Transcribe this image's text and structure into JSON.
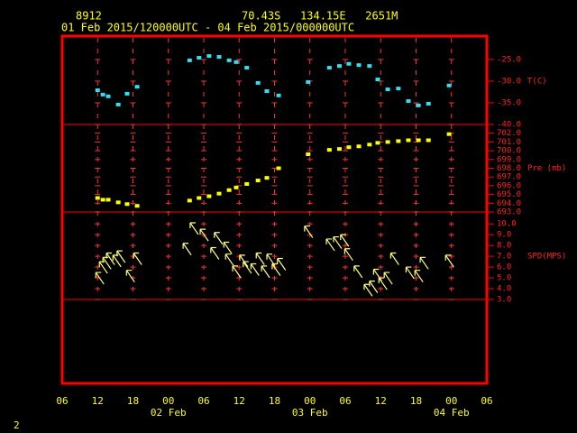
{
  "header": {
    "station": "8912",
    "location": "70.43S   134.15E   2651M",
    "period": "01 Feb 2015/120000UTC - 04 Feb 2015/000000UTC",
    "page": "2"
  },
  "time_axis": {
    "xlim": [
      6,
      78
    ],
    "xticks": [
      {
        "value": 6,
        "label": "06"
      },
      {
        "value": 12,
        "label": "12"
      },
      18,
      {
        "value": 24,
        "label": "00"
      },
      {
        "value": 30,
        "label": "06"
      },
      {
        "value": 36,
        "label": "12"
      },
      {
        "value": 42,
        "label": "18"
      },
      {
        "value": 48,
        "label": "00"
      },
      {
        "value": 54,
        "label": "06"
      },
      {
        "value": 60,
        "label": "12"
      },
      {
        "value": 66,
        "label": "18"
      },
      {
        "value": 72,
        "label": "00"
      },
      {
        "value": 78,
        "label": "06"
      }
    ],
    "day_labels": [
      {
        "value": 24,
        "label": "02 Feb"
      },
      {
        "value": 48,
        "label": "03 Feb"
      },
      {
        "value": 72,
        "label": "04 Feb"
      }
    ]
  },
  "chart_data": [
    {
      "type": "scatter",
      "ylabel": "T(C)",
      "color": "#30e0f0",
      "ylim": [
        -40,
        -19.6
      ],
      "yticks": [
        {
          "value": -25,
          "label": "-25.0"
        },
        {
          "value": -30,
          "label": "-30.0"
        },
        {
          "value": -35,
          "label": "-35.0"
        },
        {
          "value": -40,
          "label": "-40.0"
        }
      ],
      "x": [
        12.0,
        12.9,
        13.8,
        15.5,
        17.0,
        18.7,
        27.6,
        29.2,
        30.9,
        32.6,
        34.3,
        35.5,
        37.3,
        39.2,
        40.7,
        42.7,
        47.7,
        51.3,
        53.0,
        54.6,
        56.3,
        58.1,
        59.5,
        61.2,
        63.0,
        64.7,
        66.4,
        68.1,
        71.6
      ],
      "values": [
        -32.1,
        -33.1,
        -33.5,
        -35.4,
        -32.9,
        -31.3,
        -25.2,
        -24.6,
        -24.2,
        -24.4,
        -25.2,
        -25.6,
        -26.9,
        -30.4,
        -32.3,
        -33.3,
        -30.2,
        -26.9,
        -26.5,
        -26.0,
        -26.3,
        -26.5,
        -29.6,
        -31.9,
        -31.7,
        -34.6,
        -35.6,
        -35.2,
        -31.0
      ]
    },
    {
      "type": "scatter",
      "ylabel": "Pre (mb)",
      "color": "#ffff00",
      "ylim": [
        693,
        703
      ],
      "yticks": [
        {
          "value": 693,
          "label": "693.0"
        },
        {
          "value": 694,
          "label": "694.0"
        },
        {
          "value": 695,
          "label": "695.0"
        },
        {
          "value": 696,
          "label": "696.0"
        },
        {
          "value": 697,
          "label": "697.0"
        },
        {
          "value": 698,
          "label": "698.0"
        },
        {
          "value": 699,
          "label": "699.0"
        },
        {
          "value": 700,
          "label": "700.0"
        },
        {
          "value": 701,
          "label": "701.0"
        },
        {
          "value": 702,
          "label": "702.0"
        }
      ],
      "x": [
        12.0,
        12.9,
        13.8,
        15.5,
        17.0,
        18.7,
        27.6,
        29.2,
        30.9,
        32.6,
        34.3,
        35.5,
        37.3,
        39.2,
        40.7,
        42.7,
        47.7,
        51.3,
        53.0,
        54.6,
        56.3,
        58.1,
        59.5,
        61.2,
        63.0,
        64.7,
        66.4,
        68.1,
        71.6
      ],
      "values": [
        694.6,
        694.4,
        694.4,
        694.1,
        693.9,
        693.7,
        694.3,
        694.6,
        694.8,
        695.1,
        695.5,
        695.8,
        696.2,
        696.6,
        696.9,
        698.0,
        699.6,
        700.1,
        700.2,
        700.4,
        700.5,
        700.7,
        700.9,
        701.0,
        701.1,
        701.2,
        701.2,
        701.2,
        701.9
      ]
    },
    {
      "type": "arrow",
      "ylabel": "SPD(MPS)",
      "color": "#ffff80",
      "ylim": [
        3,
        11.1
      ],
      "yticks": [
        {
          "value": 3,
          "label": "3.0"
        },
        {
          "value": 4,
          "label": "4.0"
        },
        {
          "value": 5,
          "label": "5.0"
        },
        {
          "value": 6,
          "label": "6.0"
        },
        {
          "value": 7,
          "label": "7.0"
        },
        {
          "value": 8,
          "label": "8.0"
        },
        {
          "value": 9,
          "label": "9.0"
        },
        {
          "value": 10,
          "label": "10.0"
        }
      ],
      "x": [
        11.7,
        12.3,
        12.9,
        13.5,
        14.6,
        15.3,
        16.9,
        18.1,
        27.7,
        29.4,
        26.5,
        31.2,
        31.8,
        33.4,
        33.7,
        34.9,
        36.1,
        36.7,
        38.0,
        38.9,
        39.8,
        40.7,
        41.6,
        42.5,
        47.1,
        50.8,
        52.0,
        53.2,
        53.9,
        55.5,
        57.2,
        58.1,
        58.8,
        59.7,
        60.6,
        61.7,
        64.3,
        65.8,
        66.7,
        71.0
      ],
      "values": [
        5.5,
        6.5,
        6.9,
        7.3,
        7.1,
        7.5,
        5.7,
        7.3,
        10.1,
        9.5,
        8.2,
        7.8,
        9.2,
        8.3,
        7.2,
        6.1,
        7.1,
        6.5,
        6.3,
        7.3,
        6.1,
        7.2,
        6.3,
        6.8,
        9.8,
        8.6,
        8.8,
        9.0,
        7.7,
        6.1,
        4.4,
        4.7,
        5.8,
        5.0,
        5.5,
        7.3,
        6.0,
        5.7,
        6.9,
        7.1
      ]
    }
  ]
}
